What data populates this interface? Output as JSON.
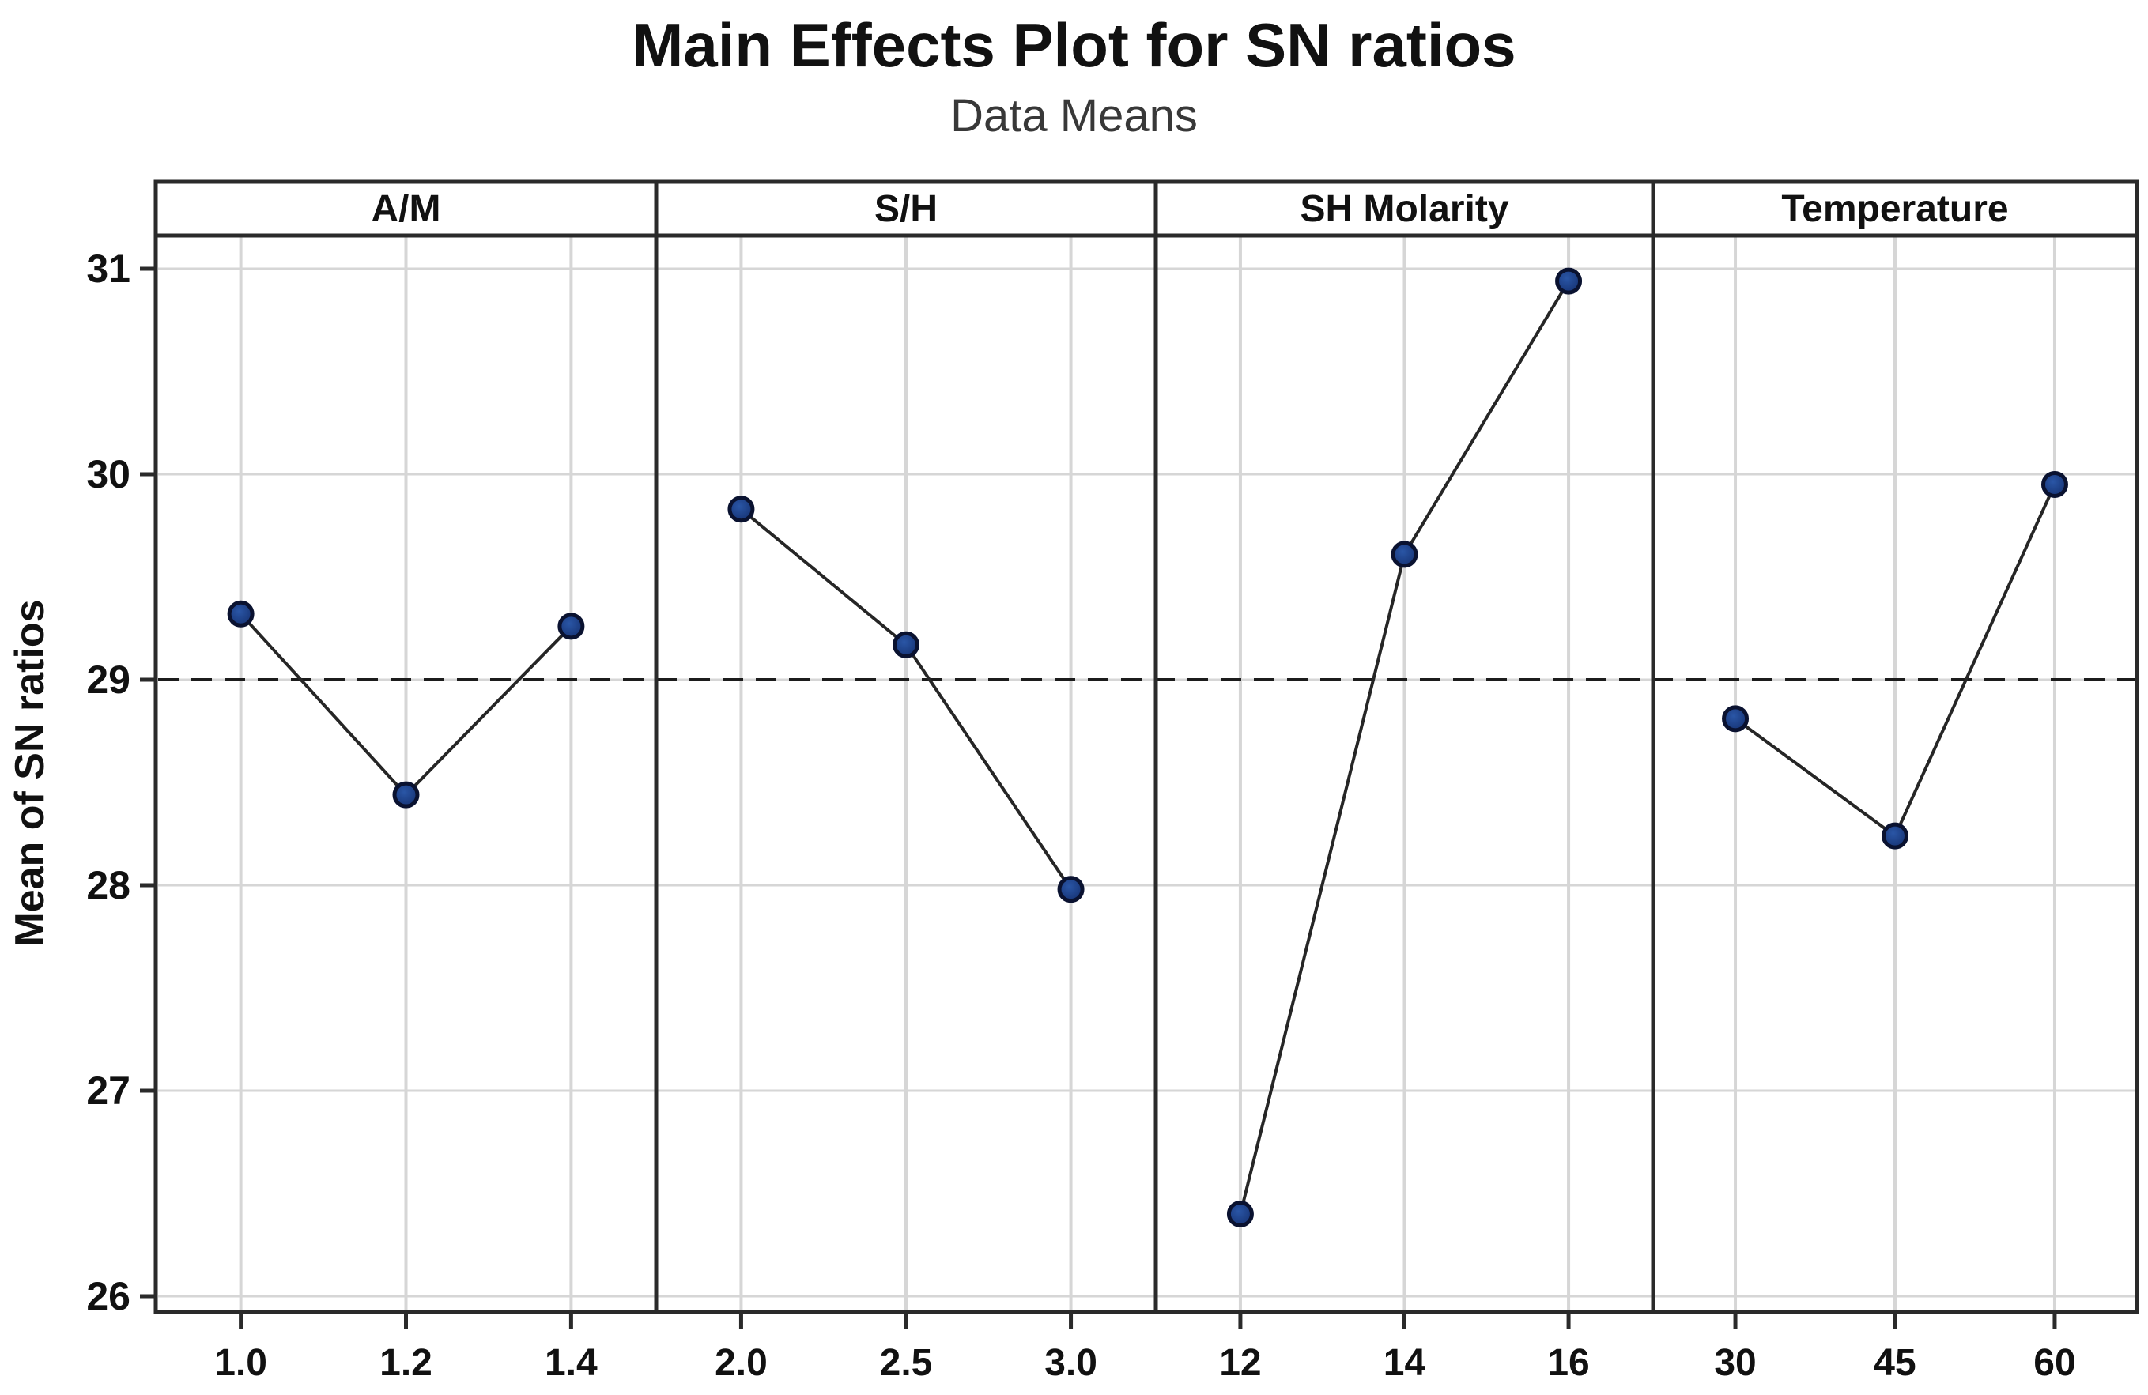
{
  "chart_data": {
    "type": "line",
    "title": "Main Effects Plot for SN ratios",
    "subtitle": "Data Means",
    "ylabel": "Mean of SN ratios",
    "yticks": [
      26,
      27,
      28,
      29,
      30,
      31
    ],
    "ylim": [
      25.92,
      31.17
    ],
    "reference_line": 29,
    "grid": true,
    "legend": "none",
    "panels": [
      {
        "label": "A/M",
        "categories": [
          "1.0",
          "1.2",
          "1.4"
        ],
        "values": [
          29.32,
          28.44,
          29.26
        ]
      },
      {
        "label": "S/H",
        "categories": [
          "2.0",
          "2.5",
          "3.0"
        ],
        "values": [
          29.83,
          29.17,
          27.98
        ]
      },
      {
        "label": "SH Molarity",
        "categories": [
          "12",
          "14",
          "16"
        ],
        "values": [
          26.4,
          29.61,
          30.94
        ]
      },
      {
        "label": "Temperature",
        "categories": [
          "30",
          "45",
          "60"
        ],
        "values": [
          28.81,
          28.24,
          29.95
        ]
      }
    ],
    "colors": {
      "marker_fill": "#142f6e",
      "marker_highlight": "#2a56a6",
      "marker_edge": "#0a1230",
      "series_line": "#262626",
      "grid_line": "#d6d6d6",
      "reference_line": "#1c1c1c",
      "frame": "#2a2a2a",
      "text": "#111111",
      "subtitle_text": "#383838"
    }
  }
}
